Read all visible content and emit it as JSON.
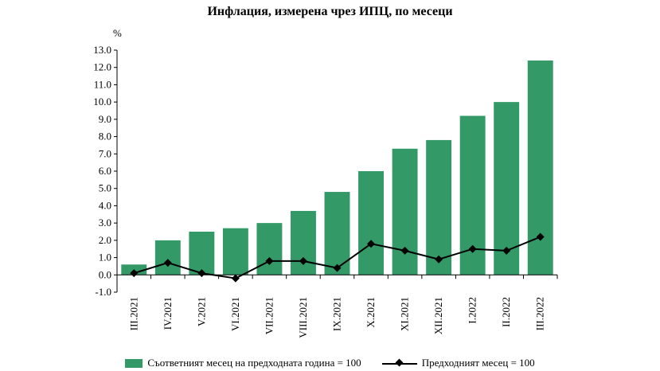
{
  "chart_data": {
    "type": "bar",
    "title": "Инфлация, измерена чрез ИПЦ, по месеци",
    "ylabel": "%",
    "xlabel": "",
    "ylim": [
      -1.0,
      13.0
    ],
    "yticks": [
      "-1.0",
      "0.0",
      "1.0",
      "2.0",
      "3.0",
      "4.0",
      "5.0",
      "6.0",
      "7.0",
      "8.0",
      "9.0",
      "10.0",
      "11.0",
      "12.0",
      "13.0"
    ],
    "grid": false,
    "legend_position": "bottom",
    "categories": [
      "III.2021",
      "IV.2021",
      "V.2021",
      "VI.2021",
      "VII.2021",
      "VIII.2021",
      "IX.2021",
      "X.2021",
      "XI.2021",
      "XII.2021",
      "I.2022",
      "II.2022",
      "III.2022"
    ],
    "series": [
      {
        "name": "Съответният месец на предходната година = 100",
        "type": "bar",
        "color": "#339966",
        "values": [
          0.6,
          2.0,
          2.5,
          2.7,
          3.0,
          3.7,
          4.8,
          6.0,
          7.3,
          7.8,
          9.2,
          10.0,
          12.4
        ]
      },
      {
        "name": "Предходният месец = 100",
        "type": "line",
        "marker": "diamond",
        "color": "#000000",
        "values": [
          0.1,
          0.7,
          0.1,
          -0.2,
          0.8,
          0.8,
          0.4,
          1.8,
          1.4,
          0.9,
          1.5,
          1.4,
          2.2
        ]
      }
    ]
  }
}
